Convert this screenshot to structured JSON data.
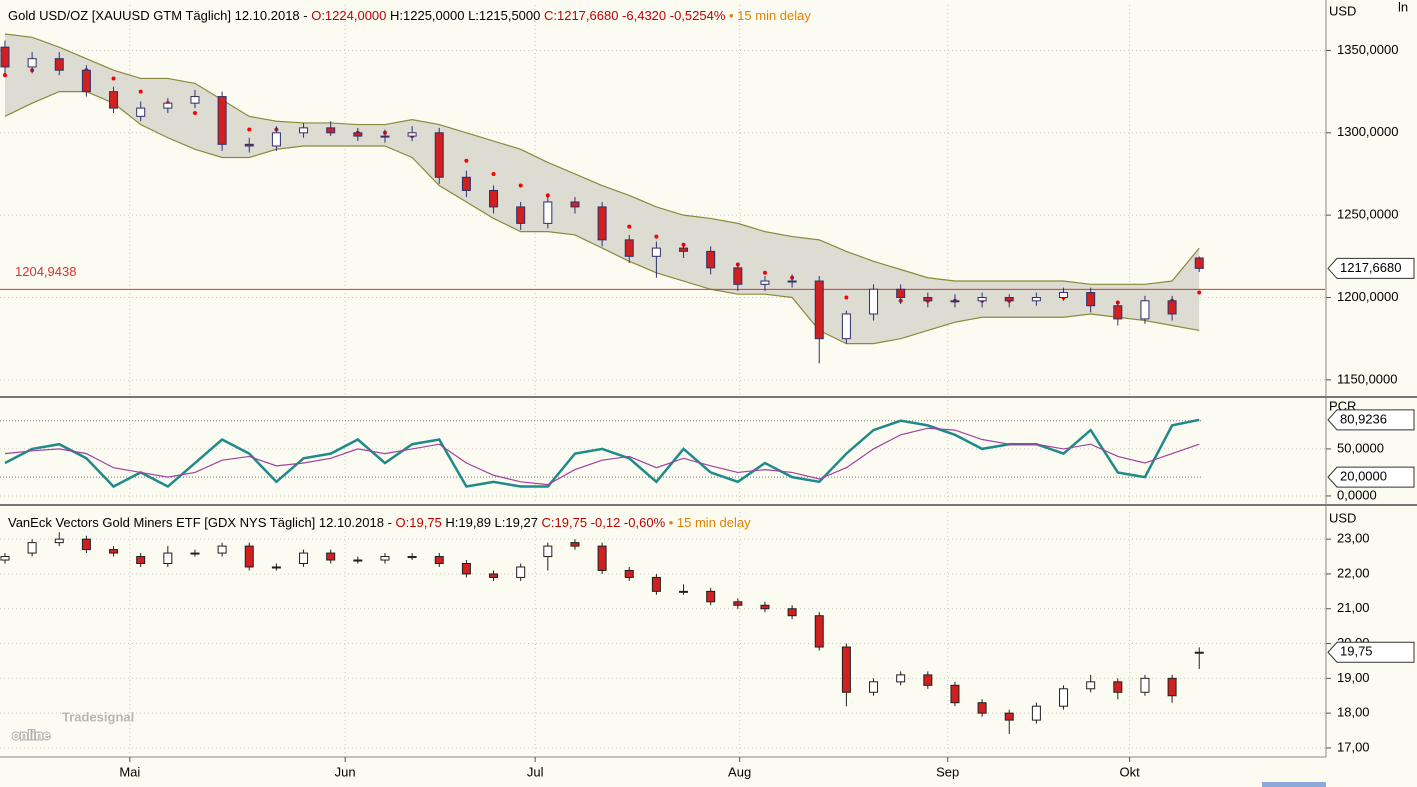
{
  "chart_data": [
    {
      "type": "candlestick",
      "header": [
        {
          "text": "Gold USD/OZ [XAUUSD GTM Täglich] 12.10.2018 - ",
          "color": "#000000"
        },
        {
          "text": "O:1224,0000",
          "color": "#c00000"
        },
        {
          "text": " H:1225,0000 L:1215,5000 ",
          "color": "#000000"
        },
        {
          "text": "C:1217,6680 -6,4320 -0,5254%",
          "color": "#c00000"
        },
        {
          "text": " • 15 min delay",
          "color": "#e08000"
        }
      ],
      "unit": "USD",
      "corner_label": "ln",
      "xlim": [
        -0.55,
        145.9
      ],
      "x": [
        0,
        3,
        6,
        9,
        12,
        15,
        18,
        21,
        24,
        27,
        30,
        33,
        36,
        39,
        42,
        45,
        48,
        51,
        54,
        57,
        60,
        63,
        66,
        69,
        72,
        75,
        78,
        81,
        84,
        87,
        90,
        93,
        96,
        99,
        102,
        105,
        108,
        111,
        114,
        117,
        120,
        123,
        126,
        129,
        132
      ],
      "open": [
        1352,
        1340,
        1345,
        1338,
        1325,
        1310,
        1315,
        1318,
        1322,
        1293,
        1292,
        1300,
        1303,
        1300,
        1298,
        1298,
        1300,
        1273,
        1265,
        1255,
        1245,
        1258,
        1255,
        1235,
        1225,
        1230,
        1228,
        1218,
        1208,
        1210,
        1210,
        1175,
        1190,
        1205,
        1200,
        1198,
        1198,
        1200,
        1198,
        1200,
        1203,
        1195,
        1187,
        1198,
        1224
      ],
      "high": [
        1356,
        1349,
        1349,
        1341,
        1328,
        1319,
        1321,
        1326,
        1325,
        1297,
        1304,
        1306,
        1307,
        1303,
        1302,
        1304,
        1303,
        1277,
        1268,
        1258,
        1262,
        1261,
        1258,
        1238,
        1234,
        1233,
        1231,
        1221,
        1213,
        1214,
        1213,
        1192,
        1208,
        1208,
        1203,
        1202,
        1203,
        1202,
        1203,
        1206,
        1206,
        1198,
        1201,
        1201,
        1225
      ],
      "low": [
        1336,
        1336,
        1335,
        1322,
        1312,
        1307,
        1312,
        1315,
        1289,
        1288,
        1289,
        1297,
        1298,
        1295,
        1294,
        1295,
        1269,
        1261,
        1251,
        1241,
        1242,
        1251,
        1231,
        1221,
        1212,
        1224,
        1214,
        1204,
        1204,
        1206,
        1160,
        1172,
        1186,
        1196,
        1194,
        1194,
        1194,
        1194,
        1195,
        1198,
        1191,
        1183,
        1184,
        1186,
        1215.5
      ],
      "close": [
        1340,
        1345,
        1338,
        1325,
        1315,
        1315,
        1318,
        1322,
        1293,
        1292,
        1300,
        1303,
        1300,
        1298,
        1298,
        1300,
        1273,
        1265,
        1255,
        1245,
        1258,
        1255,
        1235,
        1225,
        1230,
        1228,
        1218,
        1208,
        1210,
        1210,
        1175,
        1190,
        1205,
        1200,
        1198,
        1198,
        1200,
        1198,
        1200,
        1203,
        1195,
        1187,
        1198,
        1190,
        1217.668
      ],
      "band_upper": [
        1360,
        1358,
        1352,
        1345,
        1338,
        1333,
        1333,
        1330,
        1320,
        1310,
        1307,
        1306,
        1306,
        1305,
        1305,
        1308,
        1305,
        1300,
        1295,
        1290,
        1282,
        1275,
        1268,
        1262,
        1255,
        1250,
        1248,
        1245,
        1240,
        1237,
        1235,
        1228,
        1222,
        1217,
        1212,
        1210,
        1210,
        1210,
        1210,
        1210,
        1208,
        1208,
        1208,
        1210,
        1230
      ],
      "band_middle": [
        1335,
        1338,
        1340,
        1338,
        1333,
        1325,
        1318,
        1312,
        1305,
        1302,
        1302,
        1301,
        1301,
        1300,
        1300,
        1298,
        1290,
        1283,
        1275,
        1268,
        1262,
        1257,
        1250,
        1243,
        1237,
        1232,
        1226,
        1220,
        1215,
        1212,
        1205,
        1200,
        1198,
        1198,
        1198,
        1198,
        1198,
        1198,
        1199,
        1200,
        1198,
        1197,
        1197,
        1198,
        1203
      ],
      "band_lower": [
        1310,
        1318,
        1325,
        1325,
        1318,
        1305,
        1297,
        1290,
        1285,
        1285,
        1290,
        1292,
        1292,
        1292,
        1292,
        1285,
        1268,
        1258,
        1248,
        1240,
        1240,
        1238,
        1230,
        1222,
        1215,
        1210,
        1205,
        1202,
        1202,
        1200,
        1180,
        1172,
        1172,
        1175,
        1180,
        1185,
        1188,
        1188,
        1188,
        1188,
        1190,
        1188,
        1186,
        1183,
        1180
      ],
      "hline": {
        "value": 1204.9438,
        "label": "1204,9438"
      },
      "marker": {
        "value": 1217.668,
        "label": "1217,6680"
      },
      "ylim": [
        1140.8,
        1377.6
      ],
      "yticks": [
        {
          "value": 1150,
          "label": "1150,0000"
        },
        {
          "value": 1200,
          "label": "1200,0000"
        },
        {
          "value": 1250,
          "label": "1250,0000"
        },
        {
          "value": 1300,
          "label": "1300,0000"
        },
        {
          "value": 1350,
          "label": "1350,0000"
        }
      ],
      "colors": {
        "up": "#ffffff",
        "down": "#d02020",
        "outline": "#30306a",
        "band": "#dcdcd2",
        "band_line": "#8a8a3a",
        "middle": "#ff0000",
        "hline": "#e03030"
      }
    },
    {
      "type": "line",
      "unit": "PCR",
      "xlim": [
        -0.55,
        145.9
      ],
      "x": [
        0,
        3,
        6,
        9,
        12,
        15,
        18,
        21,
        24,
        27,
        30,
        33,
        36,
        39,
        42,
        45,
        48,
        51,
        54,
        57,
        60,
        63,
        66,
        69,
        72,
        75,
        78,
        81,
        84,
        87,
        90,
        93,
        96,
        99,
        102,
        105,
        108,
        111,
        114,
        117,
        120,
        123,
        126,
        129,
        132
      ],
      "series": [
        {
          "color": "#1f8a8a",
          "values": [
            35,
            50,
            55,
            40,
            10,
            25,
            10,
            35,
            60,
            45,
            15,
            40,
            45,
            60,
            35,
            55,
            60,
            10,
            15,
            10,
            10,
            45,
            50,
            40,
            15,
            50,
            25,
            15,
            35,
            20,
            15,
            45,
            70,
            80,
            75,
            65,
            50,
            55,
            55,
            45,
            70,
            25,
            20,
            75,
            80.9236
          ]
        },
        {
          "color": "#a040a0",
          "values": [
            45,
            48,
            50,
            45,
            30,
            25,
            20,
            25,
            38,
            42,
            32,
            35,
            40,
            50,
            45,
            50,
            55,
            35,
            22,
            15,
            12,
            28,
            38,
            42,
            30,
            40,
            32,
            25,
            28,
            25,
            18,
            30,
            50,
            65,
            72,
            70,
            60,
            55,
            55,
            50,
            55,
            42,
            35,
            45,
            55
          ]
        }
      ],
      "levels": [
        80,
        20
      ],
      "markers": [
        {
          "value": 80.9236,
          "label": "80,9236"
        },
        {
          "value": 20,
          "label": "20,0000"
        }
      ],
      "ylim": [
        -7.5,
        102
      ],
      "yticks": [
        {
          "value": 0,
          "label": "0,0000"
        },
        {
          "value": 50,
          "label": "50,0000"
        }
      ]
    },
    {
      "type": "candlestick",
      "header": [
        {
          "text": "VanEck Vectors Gold Miners ETF [GDX NYS Täglich] 12.10.2018 - ",
          "color": "#000000"
        },
        {
          "text": "O:19,75",
          "color": "#c00000"
        },
        {
          "text": " H:19,89 L:19,27 ",
          "color": "#000000"
        },
        {
          "text": "C:19,75 -0,12 -0,60%",
          "color": "#c00000"
        },
        {
          "text": " • 15 min delay",
          "color": "#e08000"
        }
      ],
      "unit": "USD",
      "xlim": [
        -0.55,
        145.9
      ],
      "x": [
        0,
        3,
        6,
        9,
        12,
        15,
        18,
        21,
        24,
        27,
        30,
        33,
        36,
        39,
        42,
        45,
        48,
        51,
        54,
        57,
        60,
        63,
        66,
        69,
        72,
        75,
        78,
        81,
        84,
        87,
        90,
        93,
        96,
        99,
        102,
        105,
        108,
        111,
        114,
        117,
        120,
        123,
        126,
        129,
        132
      ],
      "open": [
        22.4,
        22.6,
        22.9,
        23.0,
        22.7,
        22.5,
        22.3,
        22.6,
        22.6,
        22.8,
        22.2,
        22.3,
        22.6,
        22.4,
        22.4,
        22.5,
        22.5,
        22.3,
        22.0,
        21.9,
        22.5,
        22.9,
        22.8,
        22.1,
        21.9,
        21.5,
        21.5,
        21.2,
        21.1,
        21.0,
        20.8,
        19.9,
        18.6,
        18.9,
        19.1,
        18.8,
        18.3,
        18.0,
        17.8,
        18.2,
        18.7,
        18.9,
        18.6,
        19.0,
        19.75
      ],
      "high": [
        22.6,
        23.0,
        23.2,
        23.1,
        22.8,
        22.6,
        22.8,
        22.7,
        22.9,
        22.9,
        22.3,
        22.7,
        22.7,
        22.5,
        22.6,
        22.6,
        22.6,
        22.4,
        22.1,
        22.3,
        22.9,
        23.0,
        22.9,
        22.2,
        22.0,
        21.7,
        21.6,
        21.3,
        21.2,
        21.1,
        20.9,
        20.0,
        19.0,
        19.2,
        19.2,
        18.9,
        18.4,
        18.1,
        18.3,
        18.8,
        19.1,
        19.0,
        19.1,
        19.1,
        19.89
      ],
      "low": [
        22.3,
        22.5,
        22.8,
        22.6,
        22.5,
        22.2,
        22.2,
        22.5,
        22.5,
        22.1,
        22.1,
        22.2,
        22.3,
        22.3,
        22.3,
        22.4,
        22.2,
        21.9,
        21.8,
        21.8,
        22.1,
        22.7,
        22.0,
        21.8,
        21.4,
        21.4,
        21.1,
        21.0,
        20.9,
        20.7,
        19.8,
        18.2,
        18.5,
        18.8,
        18.7,
        18.2,
        17.9,
        17.4,
        17.7,
        18.1,
        18.6,
        18.4,
        18.5,
        18.3,
        19.27
      ],
      "close": [
        22.5,
        22.9,
        23.0,
        22.7,
        22.6,
        22.3,
        22.6,
        22.6,
        22.8,
        22.2,
        22.2,
        22.6,
        22.4,
        22.4,
        22.5,
        22.5,
        22.3,
        22.0,
        21.9,
        22.2,
        22.8,
        22.8,
        22.1,
        21.9,
        21.5,
        21.5,
        21.2,
        21.1,
        21.0,
        20.8,
        19.9,
        18.6,
        18.9,
        19.1,
        18.8,
        18.3,
        18.0,
        17.8,
        18.2,
        18.7,
        18.9,
        18.6,
        19.0,
        18.5,
        19.75
      ],
      "marker": {
        "value": 19.75,
        "label": "19,75"
      },
      "ylim": [
        16.74,
        23.78
      ],
      "yticks": [
        {
          "value": 17,
          "label": "17,00"
        },
        {
          "value": 18,
          "label": "18,00"
        },
        {
          "value": 19,
          "label": "19,00"
        },
        {
          "value": 20,
          "label": "20,00"
        },
        {
          "value": 21,
          "label": "21,00"
        },
        {
          "value": 22,
          "label": "22,00"
        },
        {
          "value": 23,
          "label": "23,00"
        }
      ],
      "xticks": [
        {
          "value": 13.8,
          "label": "Mai"
        },
        {
          "value": 37.6,
          "label": "Jun"
        },
        {
          "value": 58.6,
          "label": "Jul"
        },
        {
          "value": 81.2,
          "label": "Aug"
        },
        {
          "value": 104.2,
          "label": "Sep"
        },
        {
          "value": 124.3,
          "label": "Okt"
        }
      ],
      "colors": {
        "up": "#ffffff",
        "down": "#d02020",
        "outline": "#202020"
      }
    }
  ],
  "logo": {
    "small": "Tradesignal",
    "big": "online"
  }
}
